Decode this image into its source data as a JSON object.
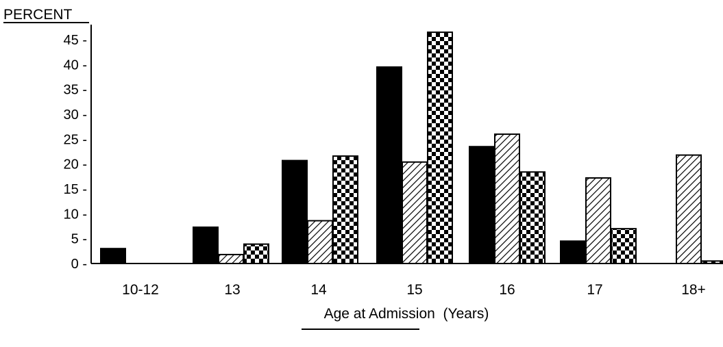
{
  "chart_data": {
    "type": "bar",
    "ylabel": "PERCENT",
    "xlabel": "Age at Admission  (Years)",
    "ylim": [
      0,
      45
    ],
    "yticks": [
      0,
      5,
      10,
      15,
      20,
      25,
      30,
      35,
      40,
      45
    ],
    "ytick_labels": [
      "0 -",
      "5 -",
      "10 -",
      "15 -",
      "20 -",
      "25 -",
      "30 -",
      "35 -",
      "40 -",
      "45 -"
    ],
    "categories": [
      "10-12",
      "13",
      "14",
      "15",
      "16",
      "17",
      "18+"
    ],
    "grid": false,
    "legend": "none",
    "series": [
      {
        "pattern": "solid",
        "values": [
          3,
          7.3,
          20.7,
          39.5,
          23.5,
          4.5,
          0
        ]
      },
      {
        "pattern": "diagonal-hatch",
        "values": [
          0,
          1.8,
          8.6,
          20.4,
          26,
          17.2,
          21.8
        ]
      },
      {
        "pattern": "checkerboard",
        "values": [
          0,
          3.9,
          21.6,
          46.5,
          18.4,
          7,
          0.5
        ]
      }
    ]
  }
}
